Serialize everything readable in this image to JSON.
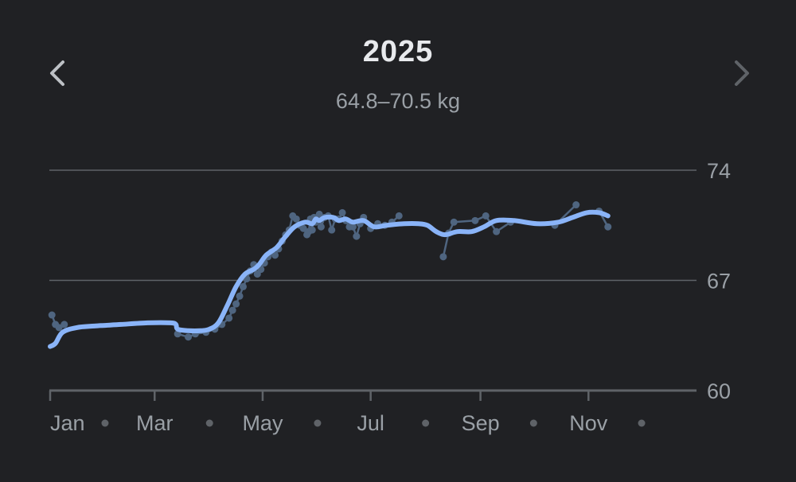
{
  "header": {
    "title": "2025",
    "range_text": "64.8–70.5 kg",
    "prev_icon": "chevron-left-icon",
    "next_icon": "chevron-right-icon"
  },
  "colors": {
    "background": "#202124",
    "trend_line": "#8ab4f8",
    "raw_points": "#4f6580",
    "grid": "#5f6368",
    "text": "#9aa0a6",
    "title": "#e8eaed",
    "next_disabled": "#5f6368"
  },
  "chart_data": {
    "type": "line",
    "title": "2025",
    "subtitle": "64.8–70.5 kg",
    "ylim": [
      60,
      74
    ],
    "yticks": [
      74,
      67,
      60
    ],
    "xlim": [
      0,
      365
    ],
    "month_labels": [
      {
        "label": "Jan",
        "day": 0
      },
      {
        "label": "Mar",
        "day": 59
      },
      {
        "label": "May",
        "day": 120
      },
      {
        "label": "Jul",
        "day": 181
      },
      {
        "label": "Sep",
        "day": 243
      },
      {
        "label": "Nov",
        "day": 304
      }
    ],
    "month_dots": [
      31,
      90,
      151,
      212,
      273,
      334
    ],
    "grid": true,
    "series": [
      {
        "kind": "raw",
        "points": [
          [
            1,
            64.8
          ],
          [
            3,
            64.2
          ],
          [
            5,
            64.0
          ],
          [
            8,
            64.2
          ],
          [
            72,
            63.6
          ],
          [
            78,
            63.4
          ],
          [
            82,
            63.6
          ],
          [
            88,
            63.7
          ],
          [
            93,
            63.9
          ],
          [
            97,
            64.2
          ],
          [
            101,
            64.6
          ],
          [
            103,
            65.1
          ],
          [
            105,
            65.5
          ],
          [
            107,
            66.0
          ],
          [
            109,
            66.6
          ],
          [
            111,
            67.1
          ],
          [
            113,
            67.6
          ],
          [
            115,
            68.0
          ],
          [
            117,
            67.4
          ],
          [
            119,
            67.7
          ],
          [
            121,
            68.1
          ],
          [
            123,
            68.5
          ],
          [
            125,
            68.8
          ],
          [
            127,
            68.6
          ],
          [
            129,
            69.0
          ],
          [
            131,
            69.5
          ],
          [
            133,
            69.9
          ],
          [
            135,
            70.2
          ],
          [
            137,
            71.1
          ],
          [
            139,
            70.9
          ],
          [
            141,
            70.5
          ],
          [
            143,
            70.3
          ],
          [
            145,
            69.9
          ],
          [
            146,
            70.1
          ],
          [
            147,
            70.9
          ],
          [
            148,
            70.2
          ],
          [
            149,
            71.0
          ],
          [
            150,
            70.7
          ],
          [
            152,
            71.2
          ],
          [
            153,
            70.4
          ],
          [
            155,
            71.0
          ],
          [
            157,
            71.1
          ],
          [
            159,
            70.2
          ],
          [
            161,
            70.9
          ],
          [
            163,
            70.9
          ],
          [
            165,
            71.3
          ],
          [
            167,
            70.8
          ],
          [
            169,
            70.4
          ],
          [
            171,
            70.4
          ],
          [
            173,
            69.8
          ],
          [
            175,
            70.6
          ],
          [
            177,
            71.0
          ],
          [
            181,
            70.3
          ],
          [
            185,
            70.6
          ],
          [
            189,
            70.5
          ],
          [
            193,
            70.7
          ],
          [
            197,
            71.1
          ],
          [
            222,
            68.5
          ],
          [
            225,
            70.0
          ],
          [
            228,
            70.7
          ],
          [
            240,
            70.8
          ],
          [
            246,
            71.1
          ],
          [
            252,
            70.1
          ],
          [
            260,
            70.7
          ],
          [
            285,
            70.5
          ],
          [
            297,
            71.8
          ],
          [
            310,
            71.4
          ],
          [
            315,
            70.4
          ]
        ]
      },
      {
        "kind": "trend",
        "points": [
          [
            0,
            62.8
          ],
          [
            3,
            63.0
          ],
          [
            7,
            63.7
          ],
          [
            15,
            64.0
          ],
          [
            25,
            64.1
          ],
          [
            40,
            64.2
          ],
          [
            55,
            64.3
          ],
          [
            68,
            64.3
          ],
          [
            71,
            64.2
          ],
          [
            72,
            63.9
          ],
          [
            78,
            63.8
          ],
          [
            85,
            63.8
          ],
          [
            90,
            63.9
          ],
          [
            95,
            64.3
          ],
          [
            100,
            65.4
          ],
          [
            105,
            66.6
          ],
          [
            110,
            67.4
          ],
          [
            115,
            67.7
          ],
          [
            118,
            68.0
          ],
          [
            122,
            68.6
          ],
          [
            128,
            69.1
          ],
          [
            133,
            69.8
          ],
          [
            138,
            70.4
          ],
          [
            144,
            70.7
          ],
          [
            148,
            70.6
          ],
          [
            150,
            70.9
          ],
          [
            152,
            70.8
          ],
          [
            155,
            71.0
          ],
          [
            160,
            71.0
          ],
          [
            163,
            70.8
          ],
          [
            167,
            70.9
          ],
          [
            171,
            70.7
          ],
          [
            177,
            70.8
          ],
          [
            183,
            70.4
          ],
          [
            190,
            70.5
          ],
          [
            200,
            70.6
          ],
          [
            208,
            70.6
          ],
          [
            213,
            70.5
          ],
          [
            218,
            70.1
          ],
          [
            223,
            69.9
          ],
          [
            230,
            70.1
          ],
          [
            238,
            70.1
          ],
          [
            245,
            70.4
          ],
          [
            252,
            70.8
          ],
          [
            262,
            70.8
          ],
          [
            275,
            70.6
          ],
          [
            287,
            70.7
          ],
          [
            295,
            71.0
          ],
          [
            303,
            71.3
          ],
          [
            310,
            71.3
          ],
          [
            315,
            71.1
          ]
        ]
      }
    ]
  }
}
